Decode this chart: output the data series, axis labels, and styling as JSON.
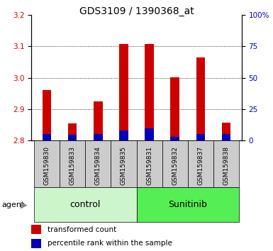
{
  "title": "GDS3109 / 1390368_at",
  "samples": [
    "GSM159830",
    "GSM159833",
    "GSM159834",
    "GSM159835",
    "GSM159831",
    "GSM159832",
    "GSM159837",
    "GSM159838"
  ],
  "red_values": [
    2.96,
    2.855,
    2.925,
    3.107,
    3.107,
    3.002,
    3.065,
    2.857
  ],
  "blue_values": [
    5.0,
    4.5,
    5.0,
    8.0,
    10.0,
    3.0,
    5.0,
    5.0
  ],
  "ylim_left": [
    2.8,
    3.2
  ],
  "ylim_right": [
    0,
    100
  ],
  "yticks_left": [
    2.8,
    2.9,
    3.0,
    3.1,
    3.2
  ],
  "yticks_right": [
    0,
    25,
    50,
    75,
    100
  ],
  "ytick_labels_right": [
    "0",
    "25",
    "50",
    "75",
    "100%"
  ],
  "groups": [
    {
      "label": "control",
      "indices": [
        0,
        1,
        2,
        3
      ],
      "color": "#ccf5cc"
    },
    {
      "label": "Sunitinib",
      "indices": [
        4,
        5,
        6,
        7
      ],
      "color": "#55ee55"
    }
  ],
  "bar_width": 0.35,
  "red_color": "#cc0000",
  "blue_color": "#0000bb",
  "sample_bg_color": "#cccccc",
  "title_fontsize": 10,
  "tick_fontsize": 7.5,
  "sample_fontsize": 6.5,
  "group_fontsize": 9,
  "legend_fontsize": 7.5,
  "agent_label": "agent",
  "baseline": 2.8
}
